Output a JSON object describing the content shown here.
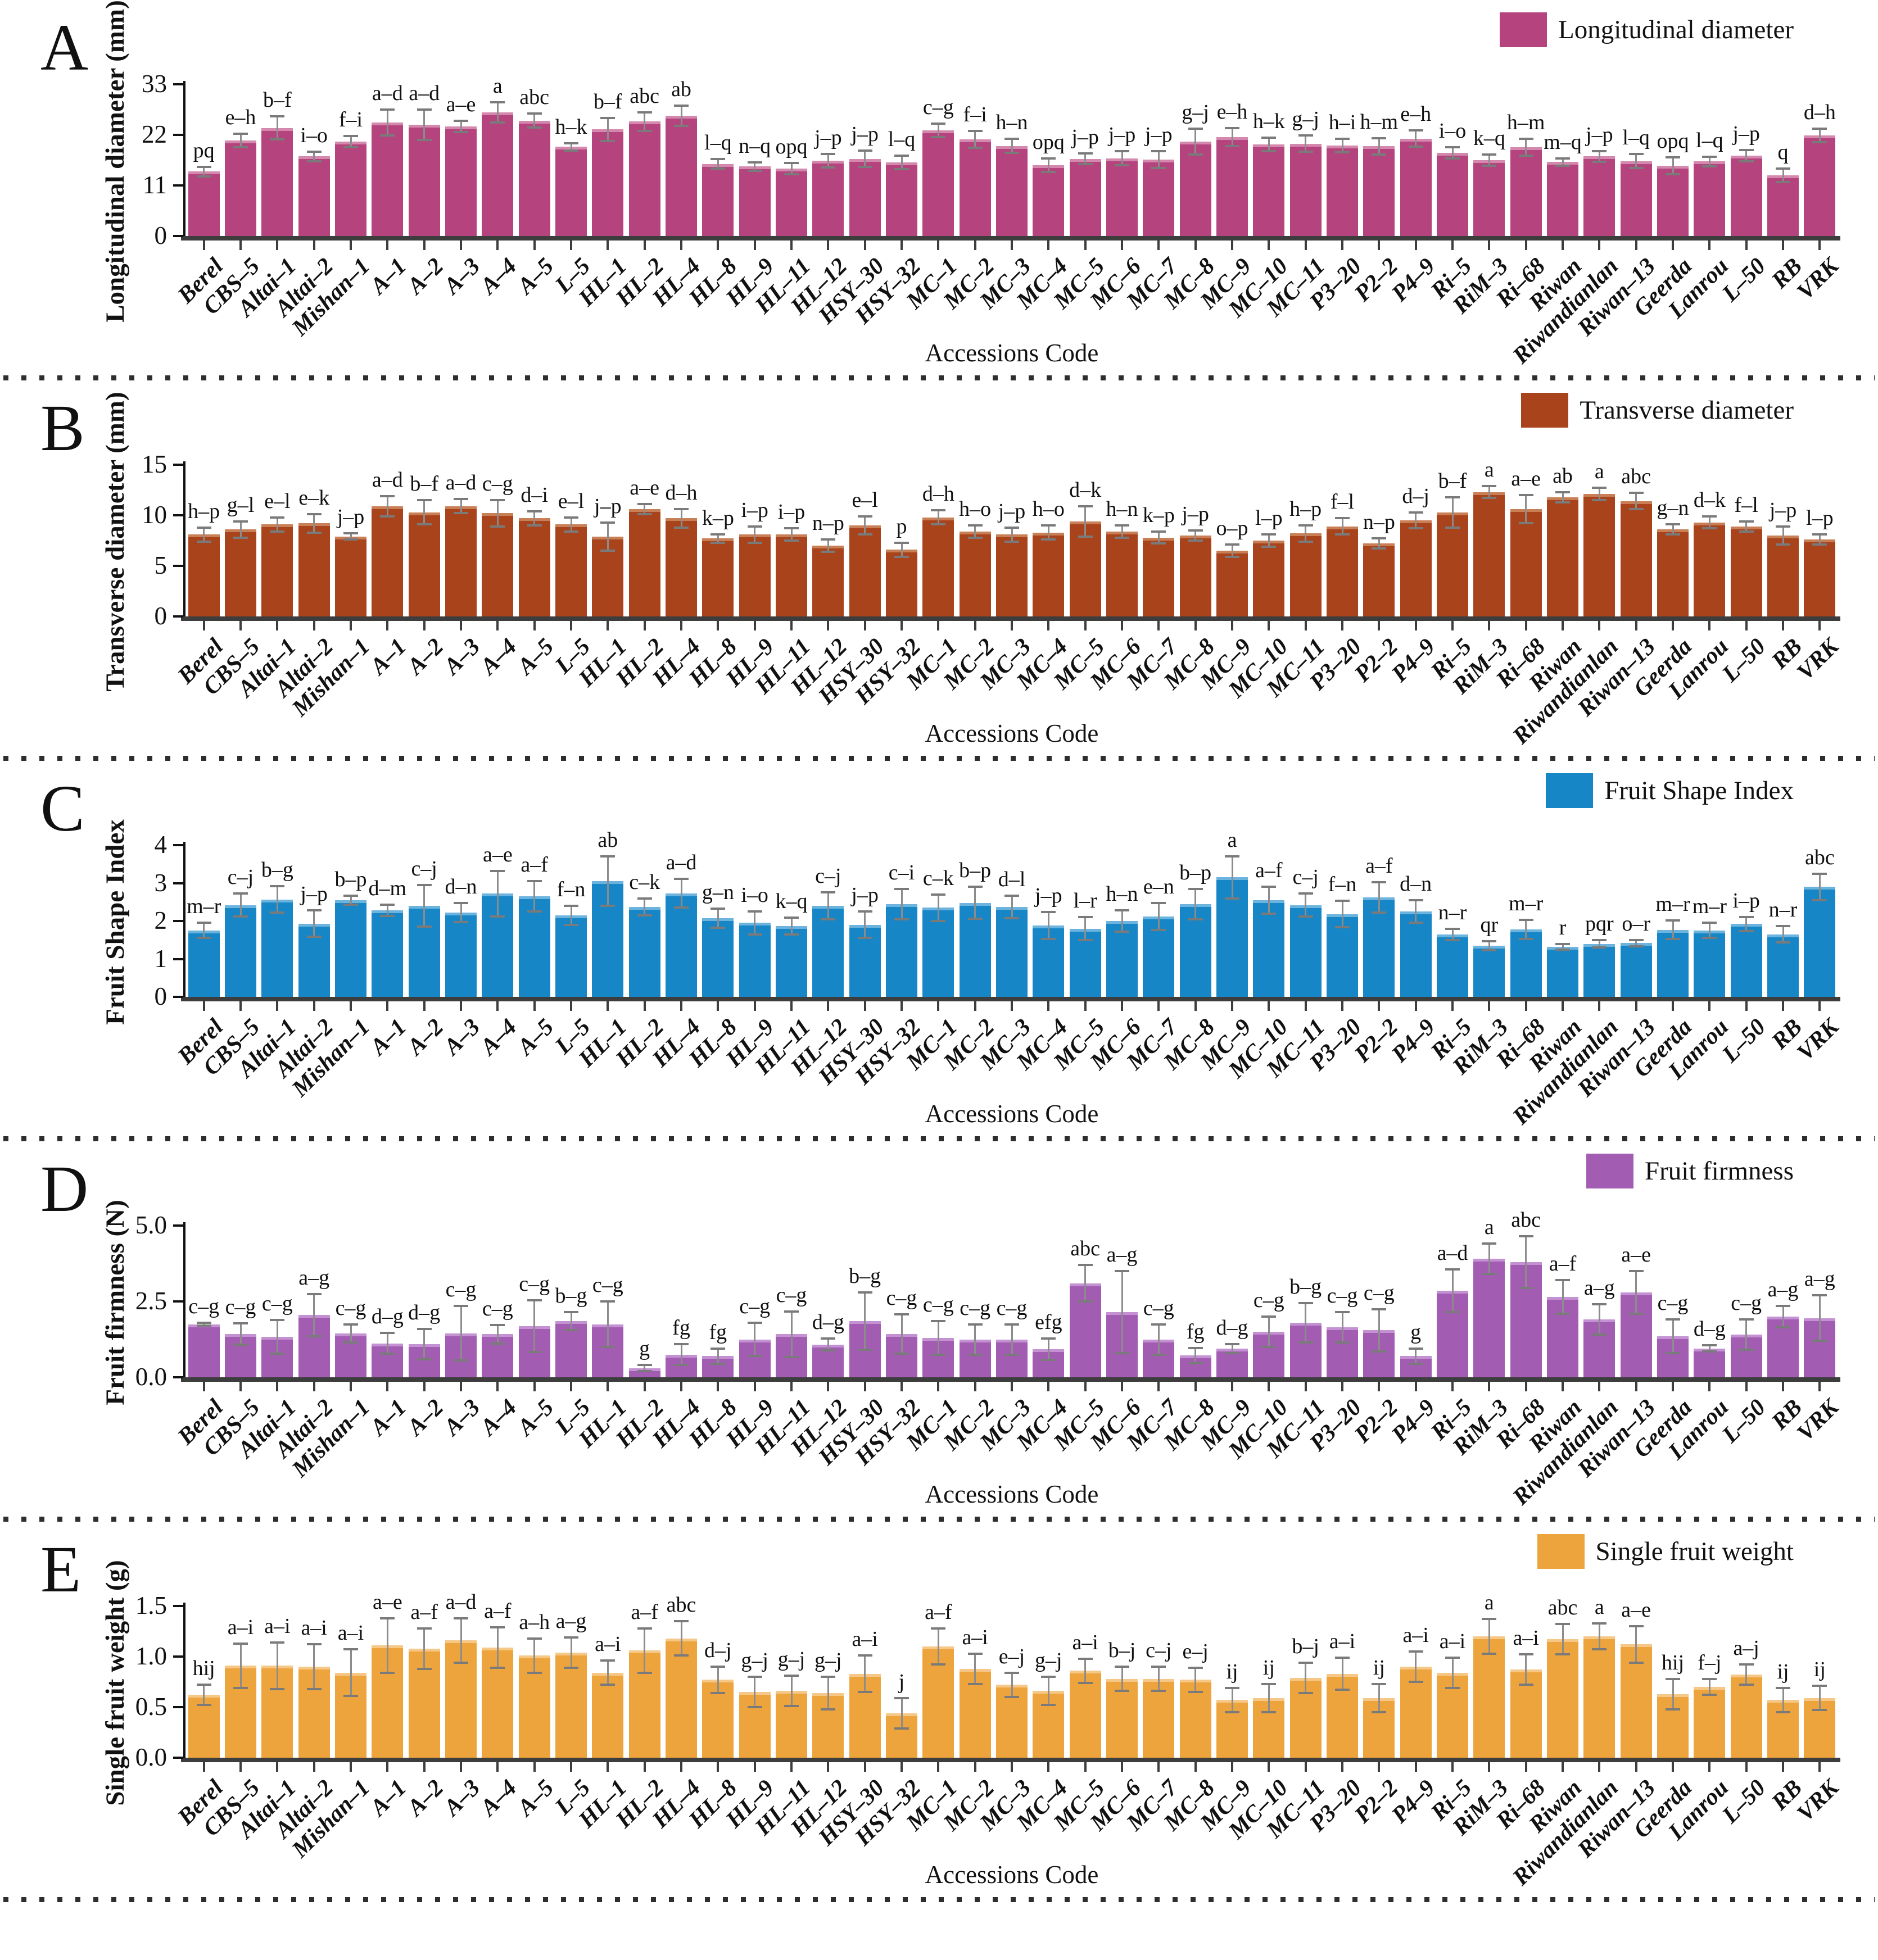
{
  "figure": {
    "xlabel": "Accessions Code",
    "legend_position": "top-right",
    "grid": "off",
    "error_bars": true,
    "separator_style": "dotted-line"
  },
  "chart_data": [
    {
      "type": "bar",
      "panel_letter": "A",
      "legend": "Longitudinal diameter",
      "ylabel": "Longitudinal diameter (mm)",
      "xlabel": "Accessions Code",
      "color": "#b5437e",
      "color_light": "#d488ad",
      "ylim": [
        0,
        33
      ],
      "ytick_values": [
        0,
        11,
        22,
        33
      ],
      "ytick_labels": [
        "0",
        "11",
        "22",
        "33"
      ],
      "categories": [
        "Berel",
        "CBS–5",
        "Altai–1",
        "Altai–2",
        "Mishan–1",
        "A–1",
        "A–2",
        "A–3",
        "A–4",
        "A–5",
        "L–5",
        "HL–1",
        "HL–2",
        "HL–4",
        "HL–8",
        "HL–9",
        "HL–11",
        "HL–12",
        "HSY–30",
        "HSY–32",
        "MC–1",
        "MC–2",
        "MC–3",
        "MC–4",
        "MC–5",
        "MC–6",
        "MC–7",
        "MC–8",
        "MC–9",
        "MC–10",
        "MC–11",
        "P3–20",
        "P2–2",
        "P4–9",
        "Ri–5",
        "RiM–3",
        "Ri–68",
        "Riwan",
        "Riwandianlan",
        "Riwan–13",
        "Geerda",
        "Lanrou",
        "L–50",
        "RB",
        "VRK"
      ],
      "values": [
        14.0,
        20.8,
        23.5,
        17.3,
        20.5,
        24.7,
        24.2,
        23.8,
        26.9,
        25.1,
        19.4,
        23.2,
        24.9,
        26.1,
        15.7,
        15.1,
        14.7,
        16.4,
        16.8,
        16.0,
        23.0,
        21.0,
        19.6,
        15.4,
        16.8,
        16.9,
        16.6,
        20.5,
        21.5,
        19.9,
        20.1,
        19.7,
        19.5,
        21.2,
        18.1,
        16.5,
        19.3,
        16.1,
        17.3,
        16.3,
        15.3,
        16.2,
        17.5,
        13.2,
        21.9
      ],
      "errors": [
        1.0,
        1.5,
        2.5,
        1.0,
        1.2,
        2.8,
        3.3,
        1.2,
        2.2,
        1.5,
        0.8,
        2.5,
        2.0,
        2.2,
        1.0,
        0.9,
        1.2,
        1.5,
        1.8,
        1.5,
        1.5,
        1.8,
        1.5,
        1.5,
        1.2,
        1.5,
        1.8,
        2.8,
        2.0,
        1.5,
        1.8,
        1.5,
        1.8,
        1.8,
        1.2,
        1.2,
        1.8,
        0.8,
        1.2,
        1.5,
        1.8,
        1.0,
        1.2,
        1.5,
        1.5
      ],
      "sig_letters": [
        "pq",
        "e–h",
        "b–f",
        "i–o",
        "f–i",
        "a–d",
        "a–d",
        "a–e",
        "a",
        "abc",
        "h–k",
        "b–f",
        "abc",
        "ab",
        "l–q",
        "n–q",
        "opq",
        "j–p",
        "j–p",
        "l–q",
        "c–g",
        "f–i",
        "h–n",
        "opq",
        "j–p",
        "j–p",
        "j–p",
        "g–j",
        "e–h",
        "h–k",
        "g–j",
        "h–i",
        "h–m",
        "e–h",
        "i–o",
        "k–q",
        "h–m",
        "m–q",
        "j–p",
        "l–q",
        "opq",
        "l–q",
        "j–p",
        "q",
        "d–h"
      ]
    },
    {
      "type": "bar",
      "panel_letter": "B",
      "legend": "Transverse diameter",
      "ylabel": "Transverse diameter (mm)",
      "xlabel": "Accessions Code",
      "color": "#a8431c",
      "color_light": "#c97f56",
      "ylim": [
        0,
        15
      ],
      "ytick_values": [
        0,
        5,
        10,
        15
      ],
      "ytick_labels": [
        "0",
        "5",
        "10",
        "15"
      ],
      "categories": [
        "Berel",
        "CBS–5",
        "Altai–1",
        "Altai–2",
        "Mishan–1",
        "A–1",
        "A–2",
        "A–3",
        "A–4",
        "A–5",
        "L–5",
        "HL–1",
        "HL–2",
        "HL–4",
        "HL–8",
        "HL–9",
        "HL–11",
        "HL–12",
        "HSY–30",
        "HSY–32",
        "MC–1",
        "MC–2",
        "MC–3",
        "MC–4",
        "MC–5",
        "MC–6",
        "MC–7",
        "MC–8",
        "MC–9",
        "MC–10",
        "MC–11",
        "P3–20",
        "P2–2",
        "P4–9",
        "Ri–5",
        "RiM–3",
        "Ri–68",
        "Riwan",
        "Riwandianlan",
        "Riwan–13",
        "Geerda",
        "Lanrou",
        "L–50",
        "RB",
        "VRK"
      ],
      "values": [
        8.1,
        8.6,
        9.1,
        9.2,
        7.9,
        10.9,
        10.3,
        10.9,
        10.2,
        9.7,
        9.1,
        7.9,
        10.6,
        9.7,
        7.7,
        8.1,
        8.1,
        7.0,
        9.0,
        6.6,
        9.8,
        8.4,
        8.1,
        8.3,
        9.4,
        8.4,
        7.8,
        8.0,
        6.5,
        7.5,
        8.2,
        8.9,
        7.2,
        9.5,
        10.3,
        12.3,
        10.6,
        11.8,
        12.1,
        11.4,
        8.6,
        9.3,
        8.9,
        8.0,
        7.6
      ],
      "errors": [
        0.7,
        0.8,
        0.7,
        0.9,
        0.3,
        1.0,
        1.2,
        0.7,
        1.3,
        0.7,
        0.7,
        1.4,
        0.5,
        0.9,
        0.4,
        0.8,
        0.6,
        0.6,
        0.9,
        0.7,
        0.7,
        0.6,
        0.7,
        0.7,
        1.5,
        0.6,
        0.6,
        0.5,
        0.6,
        0.6,
        0.8,
        0.8,
        0.5,
        0.8,
        1.5,
        0.6,
        1.4,
        0.5,
        0.6,
        0.8,
        0.5,
        0.6,
        0.5,
        0.9,
        0.5
      ],
      "sig_letters": [
        "h–p",
        "g–l",
        "e–l",
        "e–k",
        "j–p",
        "a–d",
        "b–f",
        "a–d",
        "c–g",
        "d–i",
        "e–l",
        "j–p",
        "a–e",
        "d–h",
        "k–p",
        "i–p",
        "i–p",
        "n–p",
        "e–l",
        "p",
        "d–h",
        "h–o",
        "j–p",
        "h–o",
        "d–k",
        "h–n",
        "k–p",
        "j–p",
        "o–p",
        "l–p",
        "h–p",
        "f–l",
        "n–p",
        "d–j",
        "b–f",
        "a",
        "a–e",
        "ab",
        "a",
        "abc",
        "g–n",
        "d–k",
        "f–l",
        "j–p",
        "l–p"
      ]
    },
    {
      "type": "bar",
      "panel_letter": "C",
      "legend": "Fruit Shape Index",
      "ylabel": "Fruit Shape Index",
      "xlabel": "Accessions Code",
      "color": "#1786c6",
      "color_light": "#6cb4de",
      "ylim": [
        0,
        4
      ],
      "ytick_values": [
        0,
        1,
        2,
        3,
        4
      ],
      "ytick_labels": [
        "0",
        "1",
        "2",
        "3",
        "4"
      ],
      "categories": [
        "Berel",
        "CBS–5",
        "Altai–1",
        "Altai–2",
        "Mishan–1",
        "A–1",
        "A–2",
        "A–3",
        "A–4",
        "A–5",
        "L–5",
        "HL–1",
        "HL–2",
        "HL–4",
        "HL–8",
        "HL–9",
        "HL–11",
        "HL–12",
        "HSY–30",
        "HSY–32",
        "MC–1",
        "MC–2",
        "MC–3",
        "MC–4",
        "MC–5",
        "MC–6",
        "MC–7",
        "MC–8",
        "MC–9",
        "MC–10",
        "MC–11",
        "P3–20",
        "P2–2",
        "P4–9",
        "Ri–5",
        "RiM–3",
        "Ri–68",
        "Riwan",
        "Riwandianlan",
        "Riwan–13",
        "Geerda",
        "Lanrou",
        "L–50",
        "RB",
        "VRK"
      ],
      "values": [
        1.75,
        2.42,
        2.57,
        1.93,
        2.55,
        2.28,
        2.4,
        2.22,
        2.72,
        2.65,
        2.15,
        3.05,
        2.37,
        2.73,
        2.07,
        1.95,
        1.87,
        2.4,
        1.9,
        2.45,
        2.35,
        2.48,
        2.37,
        1.88,
        1.8,
        2.0,
        2.12,
        2.45,
        3.15,
        2.55,
        2.42,
        2.18,
        2.62,
        2.25,
        1.65,
        1.35,
        1.78,
        1.32,
        1.4,
        1.42,
        1.77,
        1.75,
        1.92,
        1.65,
        2.9
      ],
      "errors": [
        0.2,
        0.3,
        0.35,
        0.35,
        0.12,
        0.15,
        0.55,
        0.25,
        0.6,
        0.4,
        0.25,
        0.65,
        0.22,
        0.38,
        0.25,
        0.3,
        0.22,
        0.35,
        0.35,
        0.4,
        0.35,
        0.42,
        0.3,
        0.35,
        0.3,
        0.28,
        0.35,
        0.4,
        0.55,
        0.35,
        0.3,
        0.35,
        0.4,
        0.3,
        0.15,
        0.12,
        0.25,
        0.07,
        0.1,
        0.08,
        0.25,
        0.2,
        0.18,
        0.22,
        0.35
      ],
      "sig_letters": [
        "m–r",
        "c–j",
        "b–g",
        "j–p",
        "b–p",
        "d–m",
        "c–j",
        "d–n",
        "a–e",
        "a–f",
        "f–n",
        "ab",
        "c–k",
        "a–d",
        "g–n",
        "i–o",
        "k–q",
        "c–j",
        "j–p",
        "c–i",
        "c–k",
        "b–p",
        "d–l",
        "j–p",
        "l–r",
        "h–n",
        "e–n",
        "b–p",
        "a",
        "a–f",
        "c–j",
        "f–n",
        "a–f",
        "d–n",
        "n–r",
        "qr",
        "m–r",
        "r",
        "pqr",
        "o–r",
        "m–r",
        "m–r",
        "i–p",
        "n–r",
        "abc"
      ]
    },
    {
      "type": "bar",
      "panel_letter": "D",
      "legend": "Fruit firmness",
      "ylabel": "Fruit firmness (N)",
      "xlabel": "Accessions Code",
      "color": "#a25db3",
      "color_light": "#c492d2",
      "ylim": [
        0,
        5
      ],
      "ytick_values": [
        0,
        2.5,
        5
      ],
      "ytick_labels": [
        "0.0",
        "2.5",
        "5.0"
      ],
      "categories": [
        "Berel",
        "CBS–5",
        "Altai–1",
        "Altai–2",
        "Mishan–1",
        "A–1",
        "A–2",
        "A–3",
        "A–4",
        "A–5",
        "L–5",
        "HL–1",
        "HL–2",
        "HL–4",
        "HL–8",
        "HL–9",
        "HL–11",
        "HL–12",
        "HSY–30",
        "HSY–32",
        "MC–1",
        "MC–2",
        "MC–3",
        "MC–4",
        "MC–5",
        "MC–6",
        "MC–7",
        "MC–8",
        "MC–9",
        "MC–10",
        "MC–11",
        "P3–20",
        "P2–2",
        "P4–9",
        "Ri–5",
        "RiM–3",
        "Ri–68",
        "Riwan",
        "Riwandianlan",
        "Riwan–13",
        "Geerda",
        "Lanrou",
        "L–50",
        "RB",
        "VRK"
      ],
      "values": [
        1.75,
        1.42,
        1.33,
        2.05,
        1.45,
        1.12,
        1.1,
        1.45,
        1.42,
        1.68,
        1.85,
        1.75,
        0.3,
        0.75,
        0.7,
        1.25,
        1.42,
        1.08,
        1.85,
        1.42,
        1.3,
        1.25,
        1.25,
        0.92,
        3.1,
        2.15,
        1.25,
        0.72,
        0.95,
        1.5,
        1.8,
        1.65,
        1.55,
        0.7,
        2.85,
        3.9,
        3.8,
        2.65,
        1.9,
        2.8,
        1.35,
        0.95,
        1.4,
        2.0,
        1.95
      ],
      "errors": [
        0.05,
        0.35,
        0.55,
        0.7,
        0.3,
        0.35,
        0.5,
        0.9,
        0.3,
        0.85,
        0.3,
        0.75,
        0.1,
        0.35,
        0.25,
        0.55,
        0.75,
        0.2,
        0.95,
        0.65,
        0.55,
        0.5,
        0.5,
        0.35,
        0.6,
        1.35,
        0.5,
        0.25,
        0.15,
        0.5,
        0.65,
        0.5,
        0.7,
        0.25,
        0.7,
        0.5,
        0.85,
        0.55,
        0.5,
        0.7,
        0.55,
        0.1,
        0.5,
        0.35,
        0.75
      ],
      "sig_letters": [
        "c–g",
        "c–g",
        "c–g",
        "a–g",
        "c–g",
        "d–g",
        "d–g",
        "c–g",
        "c–g",
        "c–g",
        "b–g",
        "c–g",
        "g",
        "fg",
        "fg",
        "c–g",
        "c–g",
        "d–g",
        "b–g",
        "c–g",
        "c–g",
        "c–g",
        "c–g",
        "efg",
        "abc",
        "a–g",
        "c–g",
        "fg",
        "d–g",
        "c–g",
        "b–g",
        "c–g",
        "c–g",
        "g",
        "a–d",
        "a",
        "abc",
        "a–f",
        "a–g",
        "a–e",
        "c–g",
        "d–g",
        "c–g",
        "a–g",
        "a–g"
      ]
    },
    {
      "type": "bar",
      "panel_letter": "E",
      "legend": "Single fruit weight",
      "ylabel": "Single fruit weight (g)",
      "xlabel": "Accessions Code",
      "color": "#eea43c",
      "color_light": "#f6c887",
      "ylim": [
        0,
        1.5
      ],
      "ytick_values": [
        0,
        0.5,
        1.0,
        1.5
      ],
      "ytick_labels": [
        "0.0",
        "0.5",
        "1.0",
        "1.5"
      ],
      "categories": [
        "Berel",
        "CBS–5",
        "Altai–1",
        "Altai–2",
        "Mishan–1",
        "A–1",
        "A–2",
        "A–3",
        "A–4",
        "A–5",
        "L–5",
        "HL–1",
        "HL–2",
        "HL–4",
        "HL–8",
        "HL–9",
        "HL–11",
        "HL–12",
        "HSY–30",
        "HSY–32",
        "MC–1",
        "MC–2",
        "MC–3",
        "MC–4",
        "MC–5",
        "MC–6",
        "MC–7",
        "MC–8",
        "MC–9",
        "MC–10",
        "MC–11",
        "P3–20",
        "P2–2",
        "P4–9",
        "Ri–5",
        "RiM–3",
        "Ri–68",
        "Riwan",
        "Riwandianlan",
        "Riwan–13",
        "Geerda",
        "Lanrou",
        "L–50",
        "RB",
        "VRK"
      ],
      "values": [
        0.62,
        0.91,
        0.91,
        0.9,
        0.84,
        1.11,
        1.08,
        1.16,
        1.09,
        1.01,
        1.04,
        0.84,
        1.06,
        1.18,
        0.77,
        0.65,
        0.66,
        0.64,
        0.83,
        0.44,
        1.1,
        0.88,
        0.72,
        0.66,
        0.86,
        0.78,
        0.78,
        0.77,
        0.57,
        0.59,
        0.79,
        0.83,
        0.59,
        0.9,
        0.84,
        1.2,
        0.87,
        1.17,
        1.2,
        1.12,
        0.63,
        0.7,
        0.82,
        0.57,
        0.59
      ],
      "errors": [
        0.1,
        0.22,
        0.23,
        0.22,
        0.23,
        0.27,
        0.2,
        0.22,
        0.2,
        0.17,
        0.15,
        0.12,
        0.22,
        0.17,
        0.13,
        0.15,
        0.15,
        0.16,
        0.18,
        0.15,
        0.18,
        0.15,
        0.12,
        0.14,
        0.12,
        0.12,
        0.12,
        0.12,
        0.12,
        0.14,
        0.15,
        0.16,
        0.14,
        0.15,
        0.15,
        0.17,
        0.15,
        0.15,
        0.13,
        0.18,
        0.15,
        0.08,
        0.1,
        0.12,
        0.12
      ],
      "sig_letters": [
        "hij",
        "a–i",
        "a–i",
        "a–i",
        "a–i",
        "a–e",
        "a–f",
        "a–d",
        "a–f",
        "a–h",
        "a–g",
        "a–i",
        "a–f",
        "abc",
        "d–j",
        "g–j",
        "g–j",
        "g–j",
        "a–i",
        "j",
        "a–f",
        "a–i",
        "e–j",
        "g–j",
        "a–i",
        "b–j",
        "c–j",
        "e–j",
        "ij",
        "ij",
        "b–j",
        "a–i",
        "ij",
        "a–i",
        "a–i",
        "a",
        "a–i",
        "abc",
        "a",
        "a–e",
        "hij",
        "f–j",
        "a–j",
        "ij",
        "ij"
      ]
    }
  ]
}
